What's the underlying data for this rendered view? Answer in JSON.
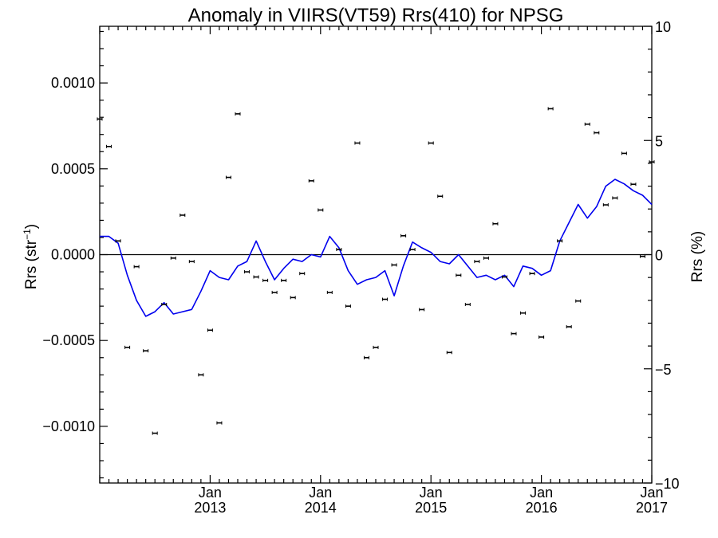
{
  "chart_data": {
    "type": "line",
    "title": "Anomaly in VIIRS(VT59) Rrs(410) for NPSG",
    "ylabel_left": "Rrs (str",
    "ylabel_left_sup": "−1",
    "ylabel_left_close": ")",
    "ylabel_right": "Rrs (%)",
    "x_range": [
      "2012-01-01",
      "2017-01-01"
    ],
    "ylim_left": [
      -0.00133,
      0.00133
    ],
    "ylim_right": [
      -10,
      10
    ],
    "left_ticks": [
      {
        "v": 0.001,
        "t": "0.0010"
      },
      {
        "v": 0.0005,
        "t": "0.0005"
      },
      {
        "v": 0.0,
        "t": "0.0000"
      },
      {
        "v": -0.0005,
        "t": "−0.0005"
      },
      {
        "v": -0.001,
        "t": "−0.0010"
      }
    ],
    "right_ticks": [
      {
        "v": 10,
        "t": "10"
      },
      {
        "v": 5,
        "t": "5"
      },
      {
        "v": 0,
        "t": "0"
      },
      {
        "v": -5,
        "t": "−5"
      },
      {
        "v": -10,
        "t": "−10"
      }
    ],
    "x_ticks": [
      {
        "date": "2013-01",
        "month": "Jan",
        "year": "2013"
      },
      {
        "date": "2014-01",
        "month": "Jan",
        "year": "2014"
      },
      {
        "date": "2015-01",
        "month": "Jan",
        "year": "2015"
      },
      {
        "date": "2016-01",
        "month": "Jan",
        "year": "2016"
      },
      {
        "date": "2017-01",
        "month": "Jan",
        "year": "2017"
      }
    ],
    "zero_line": 0,
    "series": [
      {
        "axis": "left",
        "style": "points-with-error-bars",
        "color": "#000000",
        "points": [
          {
            "x": "2012-01",
            "y": 0.00079
          },
          {
            "x": "2012-02",
            "y": 0.00063
          },
          {
            "x": "2012-03",
            "y": 8e-05
          },
          {
            "x": "2012-04",
            "y": -0.00054
          },
          {
            "x": "2012-05",
            "y": -7e-05
          },
          {
            "x": "2012-06",
            "y": -0.00056
          },
          {
            "x": "2012-07",
            "y": -0.00104
          },
          {
            "x": "2012-08",
            "y": -0.00029
          },
          {
            "x": "2012-09",
            "y": -2e-05
          },
          {
            "x": "2012-10",
            "y": 0.00023
          },
          {
            "x": "2012-11",
            "y": -4e-05
          },
          {
            "x": "2012-12",
            "y": -0.0007
          },
          {
            "x": "2013-01",
            "y": -0.00044
          },
          {
            "x": "2013-02",
            "y": -0.00098
          },
          {
            "x": "2013-03",
            "y": 0.00045
          },
          {
            "x": "2013-04",
            "y": 0.00082
          },
          {
            "x": "2013-05",
            "y": -0.0001
          },
          {
            "x": "2013-06",
            "y": -0.00013
          },
          {
            "x": "2013-07",
            "y": -0.00015
          },
          {
            "x": "2013-08",
            "y": -0.00022
          },
          {
            "x": "2013-09",
            "y": -0.00015
          },
          {
            "x": "2013-10",
            "y": -0.00025
          },
          {
            "x": "2013-11",
            "y": -0.00011
          },
          {
            "x": "2013-12",
            "y": 0.00043
          },
          {
            "x": "2014-01",
            "y": 0.00026
          },
          {
            "x": "2014-02",
            "y": -0.00022
          },
          {
            "x": "2014-03",
            "y": 3e-05
          },
          {
            "x": "2014-04",
            "y": -0.0003
          },
          {
            "x": "2014-05",
            "y": 0.00065
          },
          {
            "x": "2014-06",
            "y": -0.0006
          },
          {
            "x": "2014-07",
            "y": -0.00054
          },
          {
            "x": "2014-08",
            "y": -0.00026
          },
          {
            "x": "2014-09",
            "y": -6e-05
          },
          {
            "x": "2014-10",
            "y": 0.00011
          },
          {
            "x": "2014-11",
            "y": 3e-05
          },
          {
            "x": "2014-12",
            "y": -0.00032
          },
          {
            "x": "2015-01",
            "y": 0.00065
          },
          {
            "x": "2015-02",
            "y": 0.00034
          },
          {
            "x": "2015-03",
            "y": -0.00057
          },
          {
            "x": "2015-04",
            "y": -0.00012
          },
          {
            "x": "2015-05",
            "y": -0.00029
          },
          {
            "x": "2015-06",
            "y": -4e-05
          },
          {
            "x": "2015-07",
            "y": -2e-05
          },
          {
            "x": "2015-08",
            "y": 0.00018
          },
          {
            "x": "2015-09",
            "y": -0.00013
          },
          {
            "x": "2015-10",
            "y": -0.00046
          },
          {
            "x": "2015-11",
            "y": -0.00034
          },
          {
            "x": "2015-12",
            "y": -0.00011
          },
          {
            "x": "2016-01",
            "y": -0.00048
          },
          {
            "x": "2016-02",
            "y": 0.00085
          },
          {
            "x": "2016-03",
            "y": 8e-05
          },
          {
            "x": "2016-04",
            "y": -0.00042
          },
          {
            "x": "2016-05",
            "y": -0.00027
          },
          {
            "x": "2016-06",
            "y": 0.00076
          },
          {
            "x": "2016-07",
            "y": 0.00071
          },
          {
            "x": "2016-08",
            "y": 0.00029
          },
          {
            "x": "2016-09",
            "y": 0.00033
          },
          {
            "x": "2016-10",
            "y": 0.00059
          },
          {
            "x": "2016-11",
            "y": 0.00041
          },
          {
            "x": "2016-12",
            "y": -1e-05
          },
          {
            "x": "2017-01",
            "y": 0.00054
          }
        ]
      },
      {
        "axis": "right",
        "style": "line",
        "color": "#0000ee",
        "points": [
          {
            "x": "2012-01",
            "y": 0.8
          },
          {
            "x": "2012-02",
            "y": 0.8
          },
          {
            "x": "2012-03",
            "y": 0.5
          },
          {
            "x": "2012-04",
            "y": -0.9
          },
          {
            "x": "2012-05",
            "y": -2.0
          },
          {
            "x": "2012-06",
            "y": -2.7
          },
          {
            "x": "2012-07",
            "y": -2.5
          },
          {
            "x": "2012-08",
            "y": -2.1
          },
          {
            "x": "2012-09",
            "y": -2.6
          },
          {
            "x": "2012-10",
            "y": -2.5
          },
          {
            "x": "2012-11",
            "y": -2.4
          },
          {
            "x": "2012-12",
            "y": -1.6
          },
          {
            "x": "2013-01",
            "y": -0.7
          },
          {
            "x": "2013-02",
            "y": -1.0
          },
          {
            "x": "2013-03",
            "y": -1.1
          },
          {
            "x": "2013-04",
            "y": -0.5
          },
          {
            "x": "2013-05",
            "y": -0.3
          },
          {
            "x": "2013-06",
            "y": 0.6
          },
          {
            "x": "2013-07",
            "y": -0.3
          },
          {
            "x": "2013-08",
            "y": -1.1
          },
          {
            "x": "2013-09",
            "y": -0.6
          },
          {
            "x": "2013-10",
            "y": -0.2
          },
          {
            "x": "2013-11",
            "y": -0.3
          },
          {
            "x": "2013-12",
            "y": 0.0
          },
          {
            "x": "2014-01",
            "y": -0.1
          },
          {
            "x": "2014-02",
            "y": 0.8
          },
          {
            "x": "2014-03",
            "y": 0.3
          },
          {
            "x": "2014-04",
            "y": -0.7
          },
          {
            "x": "2014-05",
            "y": -1.3
          },
          {
            "x": "2014-06",
            "y": -1.1
          },
          {
            "x": "2014-07",
            "y": -1.0
          },
          {
            "x": "2014-08",
            "y": -0.7
          },
          {
            "x": "2014-09",
            "y": -1.8
          },
          {
            "x": "2014-10",
            "y": -0.5
          },
          {
            "x": "2014-11",
            "y": 0.55
          },
          {
            "x": "2014-12",
            "y": 0.3
          },
          {
            "x": "2015-01",
            "y": 0.1
          },
          {
            "x": "2015-02",
            "y": -0.3
          },
          {
            "x": "2015-03",
            "y": -0.4
          },
          {
            "x": "2015-04",
            "y": 0.0
          },
          {
            "x": "2015-05",
            "y": -0.5
          },
          {
            "x": "2015-06",
            "y": -1.0
          },
          {
            "x": "2015-07",
            "y": -0.9
          },
          {
            "x": "2015-08",
            "y": -1.1
          },
          {
            "x": "2015-09",
            "y": -0.9
          },
          {
            "x": "2015-10",
            "y": -1.4
          },
          {
            "x": "2015-11",
            "y": -0.5
          },
          {
            "x": "2015-12",
            "y": -0.6
          },
          {
            "x": "2016-01",
            "y": -0.9
          },
          {
            "x": "2016-02",
            "y": -0.7
          },
          {
            "x": "2016-03",
            "y": 0.6
          },
          {
            "x": "2016-04",
            "y": 1.4
          },
          {
            "x": "2016-05",
            "y": 2.2
          },
          {
            "x": "2016-06",
            "y": 1.6
          },
          {
            "x": "2016-07",
            "y": 2.1
          },
          {
            "x": "2016-08",
            "y": 3.0
          },
          {
            "x": "2016-09",
            "y": 3.3
          },
          {
            "x": "2016-10",
            "y": 3.1
          },
          {
            "x": "2016-11",
            "y": 2.8
          },
          {
            "x": "2016-12",
            "y": 2.6
          },
          {
            "x": "2017-01",
            "y": 2.2
          }
        ]
      }
    ]
  }
}
